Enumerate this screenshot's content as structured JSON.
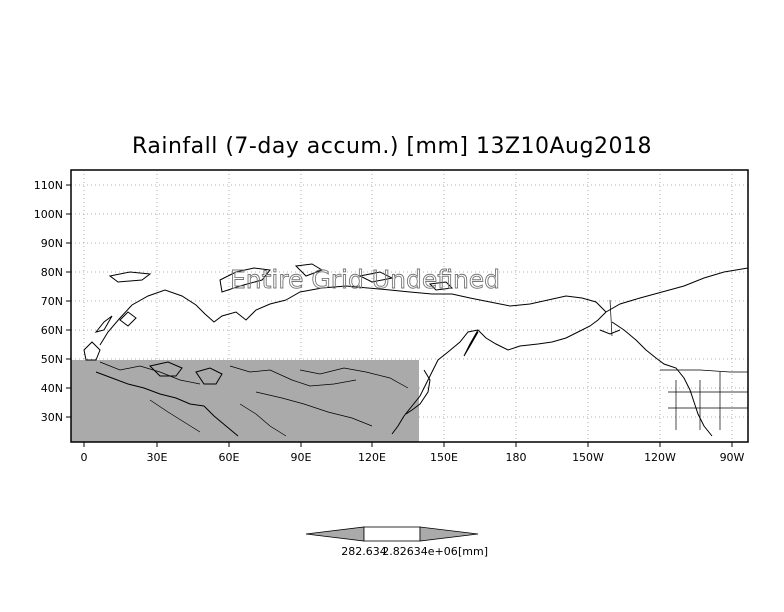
{
  "title": "Rainfall (7-day accum.) [mm] 13Z10Aug2018",
  "overlay_text": "Entire Grid Undefined",
  "lat_labels": [
    "110N",
    "100N",
    "90N",
    "80N",
    "70N",
    "60N",
    "50N",
    "40N",
    "30N"
  ],
  "lon_labels": [
    "0",
    "30E",
    "60E",
    "90E",
    "120E",
    "150E",
    "180",
    "150W",
    "120W",
    "90W"
  ],
  "colorbar": {
    "label_left": "282.634",
    "label_mid": "2.82634e+06",
    "units": "[mm]"
  },
  "colors": {
    "land_mask": "#aaaaaa",
    "border": "#000000",
    "grid": "#999999"
  }
}
